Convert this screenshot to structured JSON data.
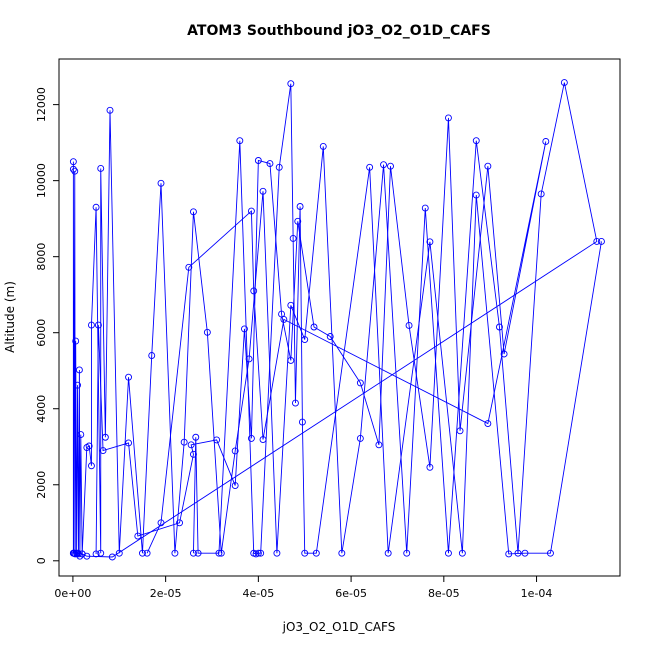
{
  "chart_data": {
    "type": "line",
    "title": "ATOM3 Southbound jO3_O2_O1D_CAFS",
    "xlabel": "jO3_O2_O1D_CAFS",
    "ylabel": "Altitude (m)",
    "xlim": [
      -3e-06,
      0.000118
    ],
    "ylim": [
      -400,
      13200
    ],
    "x_ticks": [
      {
        "value": 0,
        "label": "0e+00"
      },
      {
        "value": 2e-05,
        "label": "2e-05"
      },
      {
        "value": 4e-05,
        "label": "4e-05"
      },
      {
        "value": 6e-05,
        "label": "6e-05"
      },
      {
        "value": 8e-05,
        "label": "8e-05"
      },
      {
        "value": 0.0001,
        "label": "1e-04"
      }
    ],
    "y_ticks": [
      {
        "value": 0,
        "label": "0"
      },
      {
        "value": 2000,
        "label": "2000"
      },
      {
        "value": 4000,
        "label": "4000"
      },
      {
        "value": 6000,
        "label": "6000"
      },
      {
        "value": 8000,
        "label": "8000"
      },
      {
        "value": 10000,
        "label": "10000"
      },
      {
        "value": 12000,
        "label": "12000"
      }
    ],
    "grid": false,
    "legend": "none",
    "series_color": "#0000ff",
    "series": [
      {
        "x": [
          1e-07,
          1e-07,
          2e-07,
          4e-07,
          5e-07,
          6e-07,
          8e-07,
          1e-06,
          1.2e-06,
          1.4e-06,
          1.5e-06,
          1.7e-06,
          2e-06,
          3e-06,
          3.5e-06,
          4e-06,
          4e-06,
          5e-06,
          6e-06,
          6e-06,
          7e-06,
          8e-06,
          1e-05,
          1.2e-05,
          1.5e-05,
          1.7e-05,
          1.9e-05,
          2.2e-05,
          2.4e-05,
          2.6e-05,
          2.9e-05,
          3.2e-05,
          3.5e-05,
          3.8e-05,
          4.1e-05,
          4.4e-05,
          4.7e-05,
          5e-05,
          5.4e-05,
          5.8e-05,
          6.2e-05,
          6.7e-05,
          7.2e-05,
          7.6e-05,
          8.1e-05,
          8.7e-05,
          9.2e-05,
          9.6e-05,
          0.000101,
          0.000106,
          0.000113,
          8.5e-06,
          3e-06,
          2e-06,
          1e-06,
          3e-07,
          2e-07,
          1e-07,
          1e-07
        ],
        "y": [
          200,
          10500,
          200,
          10250,
          180,
          5780,
          200,
          4620,
          180,
          5020,
          120,
          3320,
          180,
          2980,
          3020,
          2500,
          6200,
          9300,
          200,
          10320,
          3250,
          11850,
          200,
          4830,
          200,
          5400,
          9930,
          200,
          3120,
          9180,
          6010,
          200,
          2890,
          5310,
          9720,
          200,
          6720,
          5820,
          10900,
          200,
          3220,
          10420,
          200,
          9280,
          200,
          11050,
          6150,
          200,
          9650,
          12580,
          8400,
          100,
          120,
          180,
          200,
          200,
          200,
          10300,
          200
        ]
      },
      {
        "x": [
          5e-06,
          5.5e-06,
          6.5e-06,
          1.2e-05,
          1.4e-05,
          2.3e-05,
          2.6e-05,
          2.55e-05,
          3.1e-05,
          3.5e-05,
          3.7e-05,
          3.85e-05,
          4e-05,
          4.25e-05,
          4.5e-05,
          4.7e-05,
          4.85e-05,
          5.2e-05,
          5.55e-05,
          6.2e-05,
          6.6e-05,
          6.85e-05,
          7.25e-05,
          7.7e-05,
          8.1e-05,
          8.35e-05,
          8.95e-05,
          9.3e-05,
          0.000102,
          8.95e-05,
          4.55e-05,
          4.1e-05,
          3.9e-05,
          3.85e-05,
          2.5e-05,
          1.9e-05,
          1.6e-05
        ],
        "y": [
          180,
          6200,
          2900,
          3100,
          650,
          1000,
          2800,
          3050,
          3180,
          1980,
          6100,
          3220,
          10530,
          10450,
          6490,
          5270,
          8930,
          6150,
          5900,
          4680,
          3050,
          10380,
          6190,
          2460,
          11650,
          3420,
          10380,
          5440,
          11030,
          3610,
          6350,
          3190,
          7100,
          9200,
          7720,
          1000,
          200
        ]
      },
      {
        "x": [
          2.6e-05,
          2.65e-05,
          2.7e-05,
          3.15e-05,
          3.6e-05,
          3.9e-05,
          3.95e-05,
          4e-05,
          4.05e-05,
          4.45e-05,
          4.7e-05,
          4.75e-05,
          4.8e-05,
          4.9e-05,
          4.95e-05,
          5e-05,
          5.25e-05,
          6.4e-05,
          6.8e-05,
          7.7e-05,
          8.4e-05,
          8.7e-05,
          9.4e-05,
          9.75e-05,
          0.000103,
          0.000114
        ],
        "y": [
          200,
          3250,
          200,
          200,
          11050,
          200,
          180,
          200,
          200,
          10350,
          12550,
          8480,
          4150,
          9320,
          3650,
          200,
          200,
          10350,
          200,
          8390,
          200,
          9620,
          180,
          200,
          200,
          8400
        ]
      }
    ]
  }
}
